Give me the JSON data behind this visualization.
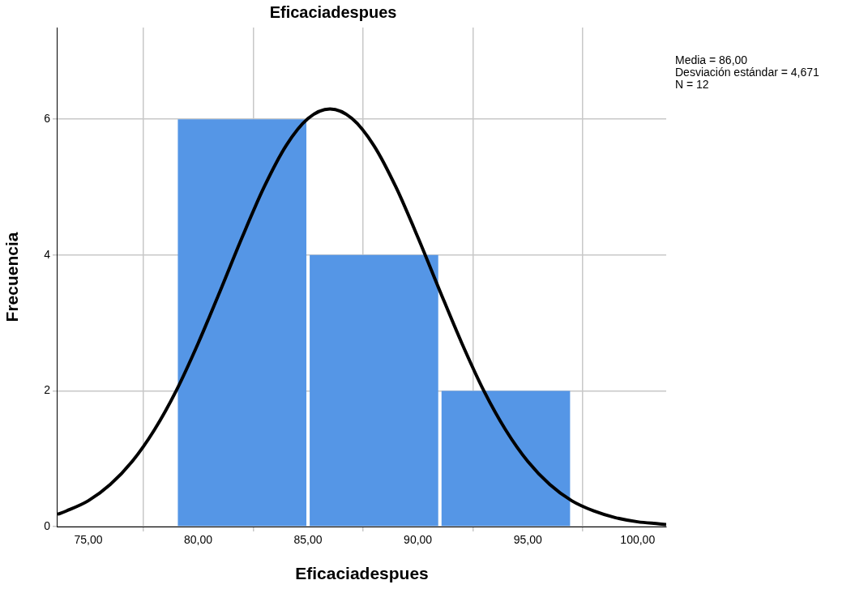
{
  "chart_data": {
    "type": "histogram",
    "title": "Eficaciadespues",
    "xlabel": "Eficaciadespues",
    "ylabel": "Frecuencia",
    "bins": [
      79,
      85,
      91,
      97
    ],
    "values": [
      6,
      4,
      2
    ],
    "color": "#5596e6",
    "series": [
      {
        "type": "line",
        "color": "#000000",
        "x": [
          73.6,
          74,
          75,
          76,
          77,
          78,
          79,
          80,
          81,
          82,
          83,
          84,
          85,
          86,
          87,
          88,
          89,
          90,
          91,
          92,
          93,
          94,
          95,
          96,
          97,
          98,
          99,
          100,
          101,
          101.3
        ],
        "values": [
          0.18,
          0.23,
          0.38,
          0.62,
          0.96,
          1.42,
          2.0,
          2.7,
          3.47,
          4.26,
          5.0,
          5.61,
          6.01,
          6.15,
          6.01,
          5.61,
          5.0,
          4.26,
          3.47,
          2.7,
          2.0,
          1.42,
          0.96,
          0.62,
          0.38,
          0.23,
          0.13,
          0.07,
          0.04,
          0.03
        ]
      }
    ],
    "xlim": [
      73.6,
      101.3
    ],
    "xticks": [
      {
        "value": 75,
        "label": "75,00"
      },
      {
        "value": 80,
        "label": "80,00"
      },
      {
        "value": 85,
        "label": "85,00"
      },
      {
        "value": 90,
        "label": "90,00"
      },
      {
        "value": 95,
        "label": "95,00"
      },
      {
        "value": 100,
        "label": "100,00"
      }
    ],
    "ylim": [
      0,
      7.35
    ],
    "yticks": [
      0,
      2,
      4,
      6
    ],
    "grid": true,
    "annotations": [
      "Media = 86,00",
      "Desviación estándar = 4,671",
      "N = 12"
    ]
  }
}
